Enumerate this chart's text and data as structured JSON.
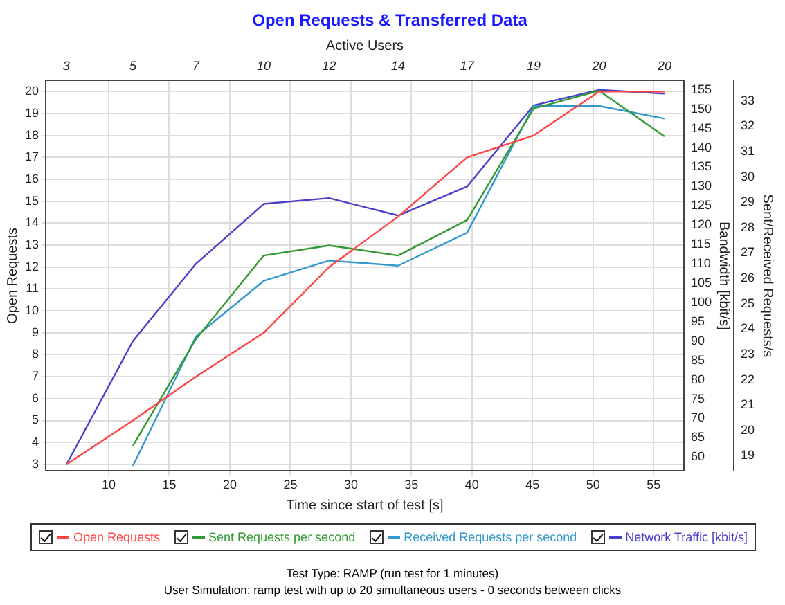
{
  "chart_data": {
    "type": "line",
    "title": "Open Requests & Transferred Data",
    "xlabel": "Time since start of test [s]",
    "ylabel": "Open Requests",
    "y2label": "Bandwidth [kbit/s]",
    "y3label": "Sent/Received Requests/s",
    "x2label": "Active Users",
    "x": [
      6.5,
      12,
      17.2,
      22.8,
      28.2,
      33.9,
      39.6,
      45.1,
      50.5,
      55.9
    ],
    "series": [
      {
        "name": "Open Requests",
        "color": "#ff4444",
        "values": [
          3,
          5,
          7,
          9,
          12,
          14.3,
          17,
          18,
          20,
          20
        ]
      },
      {
        "name": "Sent Requests per second",
        "color": "#339933",
        "axis": "y3",
        "values": [
          null,
          19.4,
          23.6,
          26.9,
          27.3,
          26.9,
          28.3,
          32.7,
          33.4,
          31.6
        ]
      },
      {
        "name": "Received Requests per second",
        "color": "#3399cc",
        "axis": "y3",
        "values": [
          null,
          18.6,
          23.7,
          25.9,
          26.7,
          26.5,
          27.8,
          32.8,
          32.8,
          32.3
        ]
      },
      {
        "name": "Network Traffic [kbit/s]",
        "color": "#4a3fc8",
        "axis": "y2",
        "values": [
          58,
          90,
          110,
          125.5,
          127,
          122.5,
          130,
          151,
          155,
          154
        ]
      }
    ],
    "xlim": [
      4.8,
      57.5
    ],
    "xticks": [
      10,
      15,
      20,
      25,
      30,
      35,
      40,
      45,
      50,
      55
    ],
    "ylim": [
      2.7,
      20.5
    ],
    "yticks": [
      3,
      4,
      5,
      6,
      7,
      8,
      9,
      10,
      11,
      12,
      13,
      14,
      15,
      16,
      17,
      18,
      19,
      20
    ],
    "y2lim": [
      56.4,
      157.4
    ],
    "y2ticks": [
      60,
      65,
      70,
      75,
      80,
      85,
      90,
      95,
      100,
      105,
      110,
      115,
      120,
      125,
      130,
      135,
      140,
      145,
      150,
      155
    ],
    "y3lim": [
      18.4,
      33.8
    ],
    "y3ticks": [
      19,
      20,
      21,
      22,
      23,
      24,
      25,
      26,
      27,
      28,
      29,
      30,
      31,
      32,
      33
    ],
    "grid": true,
    "legend": "bottom",
    "marker": "none",
    "line_style": "solid",
    "annotations": [
      "3",
      "5",
      "7",
      "10",
      "12",
      "14",
      "17",
      "19",
      "20",
      "20",
      "Test Type: RAMP (run test for 1 minutes)",
      "User Simulation: ramp test with up to 20 simultaneous users - 0 seconds between clicks"
    ]
  }
}
